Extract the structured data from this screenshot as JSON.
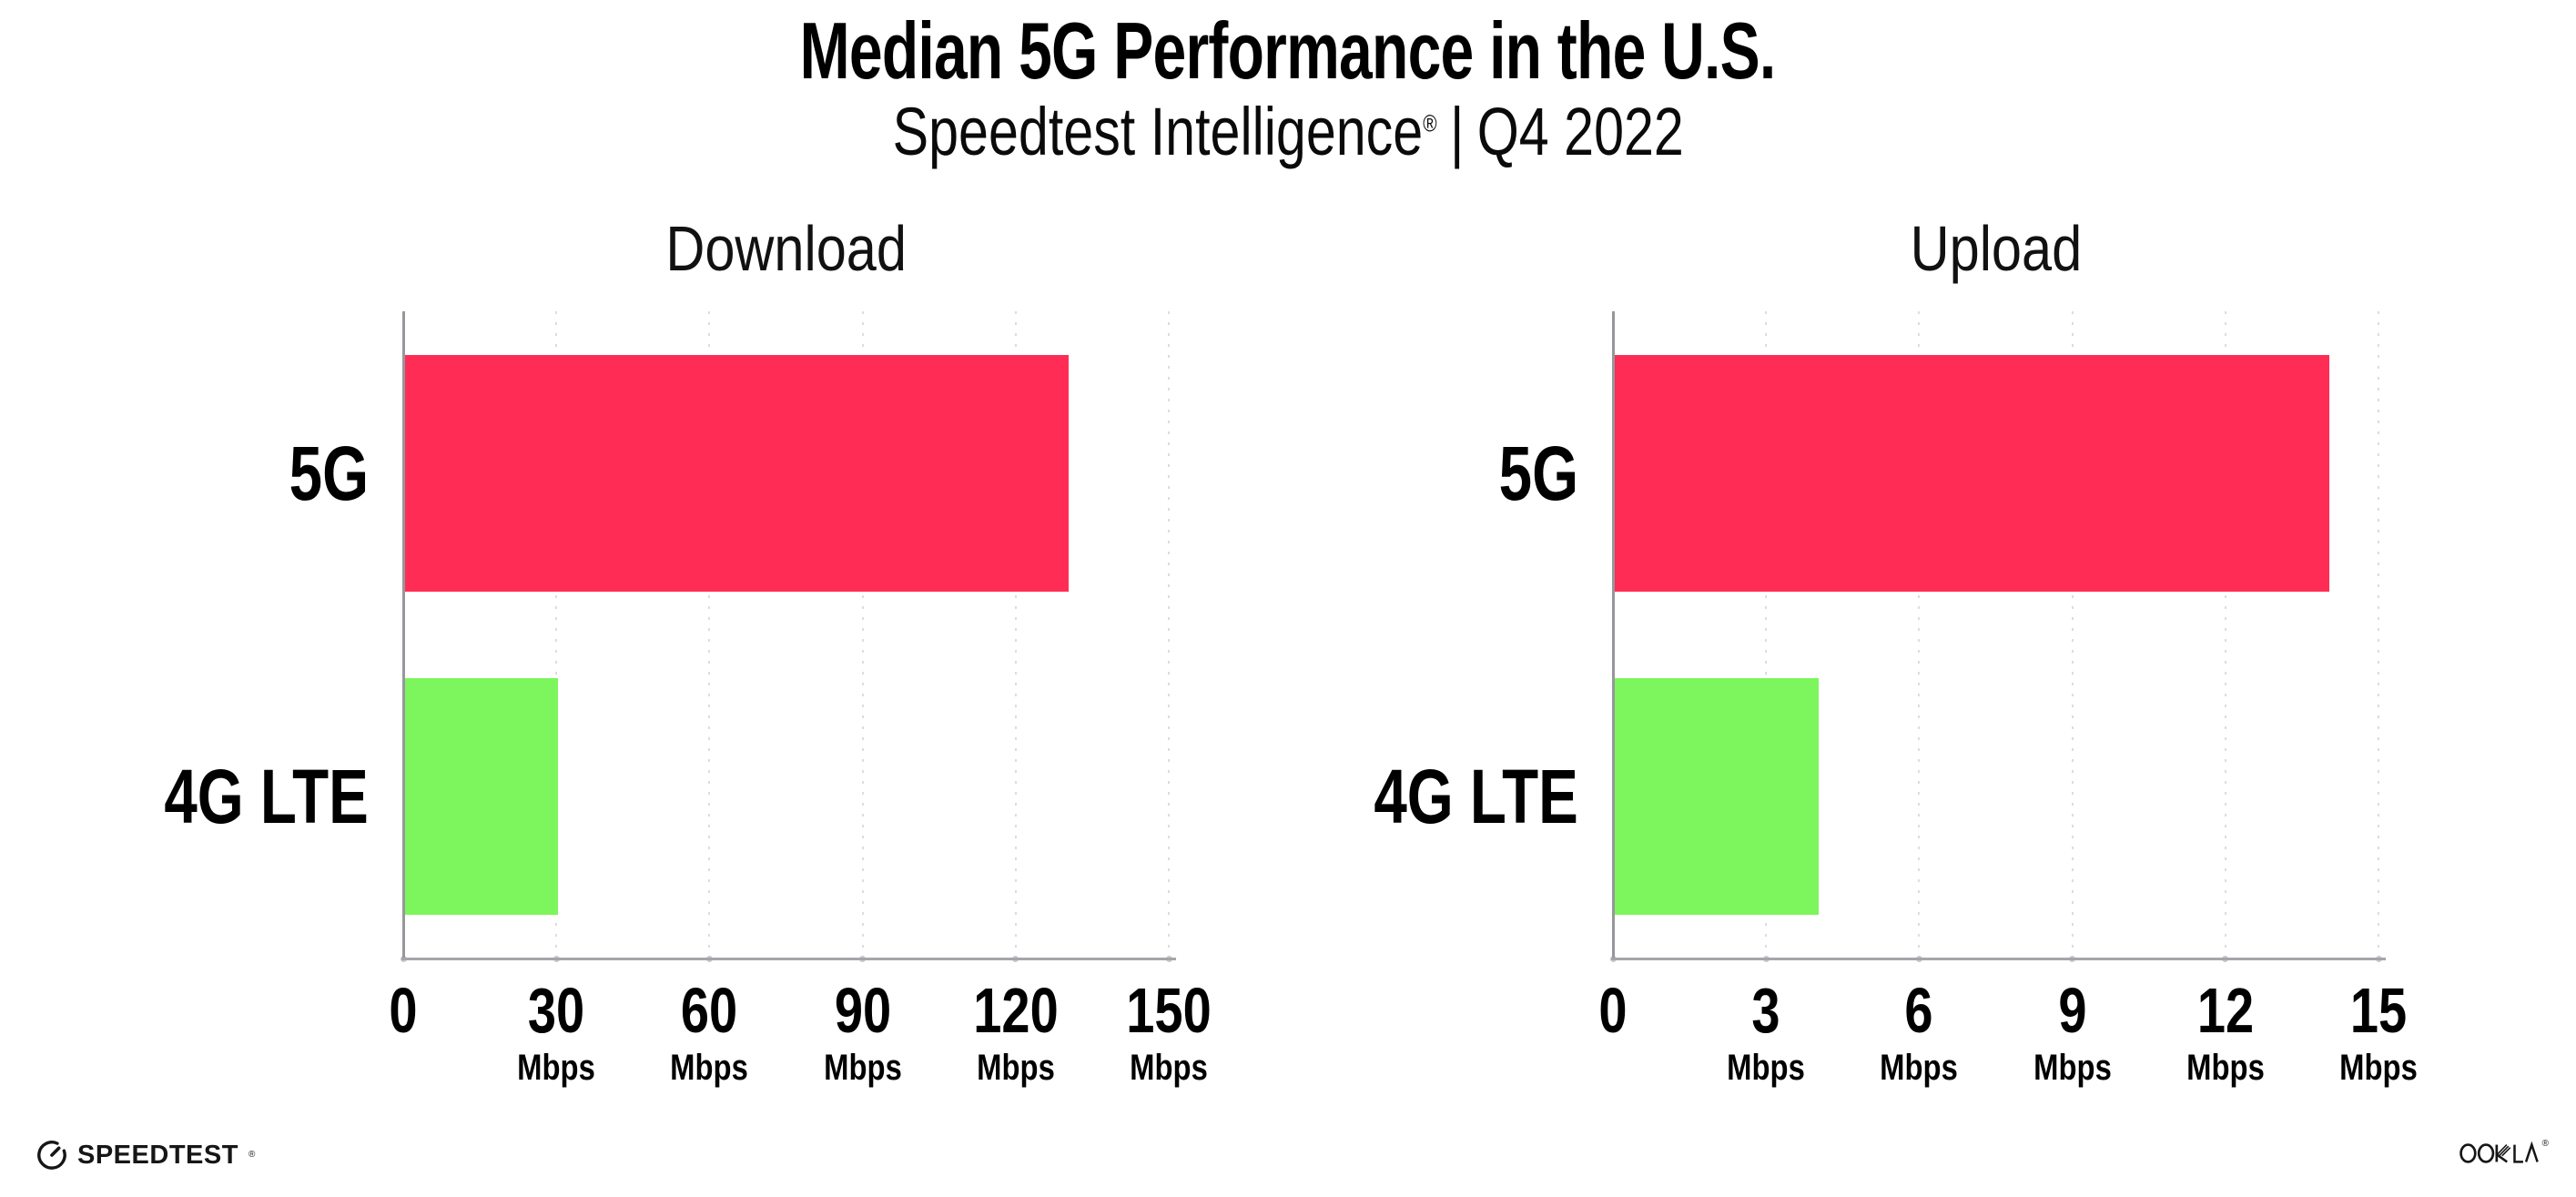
{
  "header": {
    "title": "Median 5G Performance in the U.S.",
    "subtitle": {
      "brand": "Speedtest Intelligence",
      "reg_mark": "®",
      "separator": "|",
      "period": "Q4 2022"
    }
  },
  "chart_data": [
    {
      "type": "bar",
      "orientation": "horizontal",
      "title": "Download",
      "categories": [
        "5G",
        "4G LTE"
      ],
      "values": [
        130,
        30
      ],
      "unit": "Mbps",
      "xlim": [
        0,
        150
      ],
      "xticks": [
        0,
        30,
        60,
        90,
        120,
        150
      ],
      "tick_unit_label": "Mbps",
      "tick_unit_on_zero": false,
      "bar_colors": [
        "#FF2D55",
        "#7CF65C"
      ],
      "grid": "vertical-dotted",
      "legend": "none"
    },
    {
      "type": "bar",
      "orientation": "horizontal",
      "title": "Upload",
      "categories": [
        "5G",
        "4G LTE"
      ],
      "values": [
        14,
        4
      ],
      "unit": "Mbps",
      "xlim": [
        0,
        15
      ],
      "xticks": [
        0,
        3,
        6,
        9,
        12,
        15
      ],
      "tick_unit_label": "Mbps",
      "tick_unit_on_zero": false,
      "bar_colors": [
        "#FF2D55",
        "#7CF65C"
      ],
      "grid": "vertical-dotted",
      "legend": "none"
    }
  ],
  "footer": {
    "speedtest_logo_text": "SPEEDTEST",
    "speedtest_trademark": "®",
    "ookla_logo_text": "OOKLA",
    "ookla_trademark": "®"
  },
  "style": {
    "bar_red": "#FF2D55",
    "bar_green": "#7CF65C",
    "grid_color": "#DCDCE3",
    "axis_color": "#A5A5AA",
    "spine_color": "#97979C",
    "text_color": "#000000"
  }
}
